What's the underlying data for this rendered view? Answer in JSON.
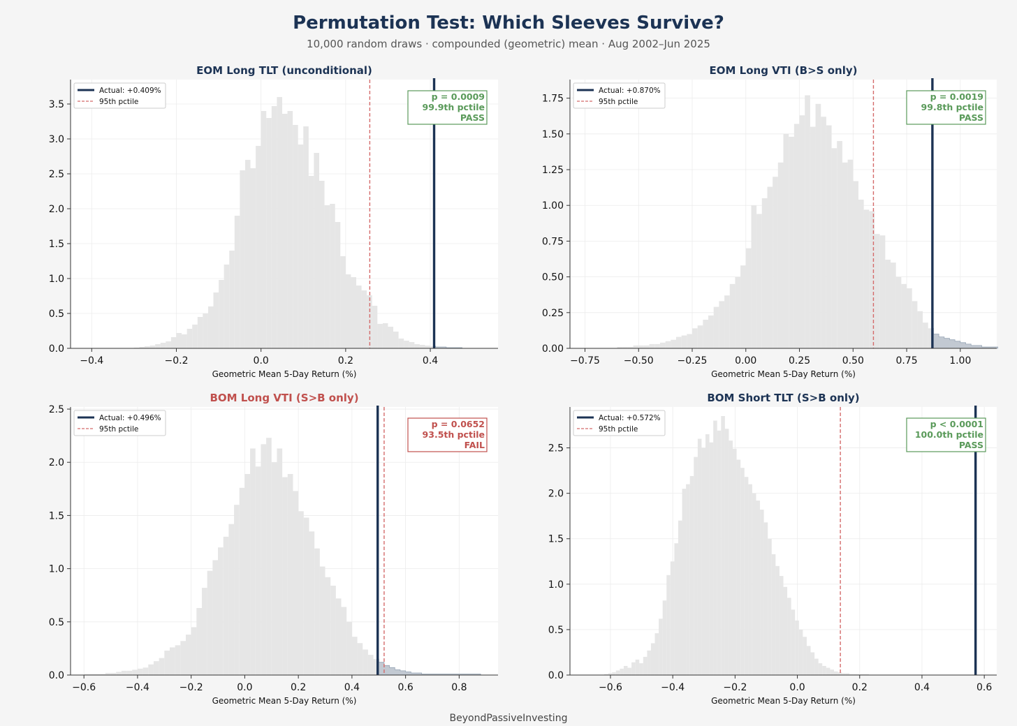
{
  "title": "Permutation Test: Which Sleeves Survive?",
  "subtitle": "10,000 random draws  ·  compounded (geometric) mean  ·  Aug 2002–Jun 2025",
  "footer": "BeyondPassiveInvesting",
  "colors": {
    "actual_line": "#1c3354",
    "pctile_line": "#d46a6a",
    "hist_fill": "#e6e6e6",
    "tail_fill": "#b9c2cd",
    "pass": "#5a9a5a",
    "fail": "#c0504d",
    "title_default": "#1c3354"
  },
  "chart_data": [
    {
      "type": "histogram",
      "title": "EOM Long TLT (unconditional)",
      "title_status": "pass",
      "xlabel": "Geometric Mean 5-Day Return (%)",
      "xlim": [
        -0.45,
        0.56
      ],
      "ylim": [
        0,
        3.85
      ],
      "xticks": [
        -0.4,
        -0.2,
        0.0,
        0.2,
        0.4
      ],
      "xtick_labels": [
        "−0.4",
        "−0.2",
        "0.0",
        "0.2",
        "0.4"
      ],
      "yticks": [
        0,
        0.5,
        1.0,
        1.5,
        2.0,
        2.5,
        3.0,
        3.5
      ],
      "ytick_labels": [
        "0.0",
        "0.5",
        "1.0",
        "1.5",
        "2.0",
        "2.5",
        "3.0",
        "3.5"
      ],
      "bins": {
        "start": -0.3,
        "width": 0.0125,
        "heights": [
          0.01,
          0.02,
          0.03,
          0.04,
          0.06,
          0.08,
          0.1,
          0.16,
          0.22,
          0.2,
          0.28,
          0.34,
          0.45,
          0.5,
          0.6,
          0.8,
          0.98,
          1.2,
          1.4,
          1.9,
          2.55,
          2.7,
          2.58,
          2.9,
          3.4,
          3.3,
          3.47,
          3.6,
          3.36,
          3.4,
          3.2,
          2.92,
          3.18,
          2.47,
          2.8,
          2.4,
          2.05,
          2.07,
          1.81,
          1.32,
          1.06,
          1.02,
          0.9,
          0.83,
          0.76,
          0.61,
          0.35,
          0.36,
          0.31,
          0.24,
          0.14,
          0.11,
          0.09,
          0.06,
          0.05,
          0.04,
          0.03,
          0.02,
          0.02,
          0.01,
          0.01,
          0.01
        ]
      },
      "tail_start": 0.409,
      "actual_value": 0.409,
      "pctile95_value": 0.257,
      "legend": {
        "actual_label": "Actual: +0.409%",
        "pctile_label": "95th pctile"
      },
      "stats": {
        "status": "pass",
        "p_text": "p = 0.0009",
        "pctile_text": "99.9th pctile",
        "result_text": "PASS"
      }
    },
    {
      "type": "histogram",
      "title": "EOM Long VTI (B>S only)",
      "title_status": "pass",
      "xlabel": "Geometric Mean 5-Day Return (%)",
      "xlim": [
        -0.82,
        1.17
      ],
      "ylim": [
        0,
        1.88
      ],
      "xticks": [
        -0.75,
        -0.5,
        -0.25,
        0.0,
        0.25,
        0.5,
        0.75,
        1.0
      ],
      "xtick_labels": [
        "−0.75",
        "−0.50",
        "−0.25",
        "0.00",
        "0.25",
        "0.50",
        "0.75",
        "1.00"
      ],
      "yticks": [
        0,
        0.25,
        0.5,
        0.75,
        1.0,
        1.25,
        1.5,
        1.75
      ],
      "ytick_labels": [
        "0.00",
        "0.25",
        "0.50",
        "0.75",
        "1.00",
        "1.25",
        "1.50",
        "1.75"
      ],
      "bins": {
        "start": -0.6,
        "width": 0.025,
        "heights": [
          0.01,
          0.01,
          0.01,
          0.02,
          0.02,
          0.02,
          0.03,
          0.03,
          0.04,
          0.05,
          0.06,
          0.08,
          0.09,
          0.1,
          0.14,
          0.16,
          0.2,
          0.23,
          0.29,
          0.33,
          0.37,
          0.45,
          0.5,
          0.58,
          0.7,
          1.0,
          0.94,
          1.05,
          1.13,
          1.2,
          1.3,
          1.5,
          1.48,
          1.57,
          1.63,
          1.77,
          1.55,
          1.71,
          1.62,
          1.56,
          1.4,
          1.45,
          1.3,
          1.32,
          1.17,
          1.04,
          0.97,
          0.96,
          0.8,
          0.79,
          0.62,
          0.6,
          0.5,
          0.45,
          0.42,
          0.33,
          0.26,
          0.18,
          0.14,
          0.1,
          0.08,
          0.07,
          0.06,
          0.05,
          0.04,
          0.03,
          0.02,
          0.02,
          0.01,
          0.01,
          0.01
        ]
      },
      "tail_start": 0.87,
      "actual_value": 0.87,
      "pctile95_value": 0.595,
      "legend": {
        "actual_label": "Actual: +0.870%",
        "pctile_label": "95th pctile"
      },
      "stats": {
        "status": "pass",
        "p_text": "p = 0.0019",
        "pctile_text": "99.8th pctile",
        "result_text": "PASS"
      }
    },
    {
      "type": "histogram",
      "title": "BOM Long VTI (S>B only)",
      "title_status": "fail",
      "xlabel": "Geometric Mean 5-Day Return (%)",
      "xlim": [
        -0.65,
        0.945
      ],
      "ylim": [
        0,
        2.52
      ],
      "xticks": [
        -0.6,
        -0.4,
        -0.2,
        0.0,
        0.2,
        0.4,
        0.6,
        0.8
      ],
      "xtick_labels": [
        "−0.6",
        "−0.4",
        "−0.2",
        "0.0",
        "0.2",
        "0.4",
        "0.6",
        "0.8"
      ],
      "yticks": [
        0,
        0.5,
        1.0,
        1.5,
        2.0,
        2.5
      ],
      "ytick_labels": [
        "0.0",
        "0.5",
        "1.0",
        "1.5",
        "2.0",
        "2.5"
      ],
      "bins": {
        "start": -0.6,
        "width": 0.02,
        "heights": [
          0.01,
          0.01,
          0.01,
          0.01,
          0.02,
          0.02,
          0.03,
          0.04,
          0.04,
          0.05,
          0.06,
          0.07,
          0.1,
          0.13,
          0.16,
          0.23,
          0.26,
          0.28,
          0.32,
          0.38,
          0.45,
          0.63,
          0.82,
          0.98,
          1.08,
          1.2,
          1.3,
          1.42,
          1.6,
          1.76,
          1.89,
          2.13,
          1.96,
          2.17,
          2.23,
          2.0,
          2.13,
          1.86,
          1.89,
          1.73,
          1.54,
          1.48,
          1.35,
          1.19,
          1.02,
          0.92,
          0.84,
          0.72,
          0.64,
          0.5,
          0.36,
          0.3,
          0.24,
          0.19,
          0.15,
          0.12,
          0.09,
          0.07,
          0.05,
          0.04,
          0.03,
          0.02,
          0.02,
          0.01,
          0.01,
          0.01,
          0.01,
          0.01,
          0.01,
          0.01,
          0.01,
          0.01,
          0.01,
          0.01
        ]
      },
      "tail_start": 0.496,
      "actual_value": 0.496,
      "pctile95_value": 0.52,
      "legend": {
        "actual_label": "Actual: +0.496%",
        "pctile_label": "95th pctile"
      },
      "stats": {
        "status": "fail",
        "p_text": "p = 0.0652",
        "pctile_text": "93.5th pctile",
        "result_text": "FAIL"
      }
    },
    {
      "type": "histogram",
      "title": "BOM Short TLT (S>B only)",
      "title_status": "pass",
      "xlabel": "Geometric Mean 5-Day Return (%)",
      "xlim": [
        -0.73,
        0.64
      ],
      "ylim": [
        0,
        2.95
      ],
      "xticks": [
        -0.6,
        -0.4,
        -0.2,
        0.0,
        0.2,
        0.4,
        0.6
      ],
      "xtick_labels": [
        "−0.6",
        "−0.4",
        "−0.2",
        "0.0",
        "0.2",
        "0.4",
        "0.6"
      ],
      "yticks": [
        0,
        0.5,
        1.0,
        1.5,
        2.0,
        2.5
      ],
      "ytick_labels": [
        "0.0",
        "0.5",
        "1.0",
        "1.5",
        "2.0",
        "2.5"
      ],
      "bins": {
        "start": -0.62,
        "width": 0.0125,
        "heights": [
          0.01,
          0.02,
          0.03,
          0.05,
          0.07,
          0.1,
          0.08,
          0.14,
          0.17,
          0.13,
          0.2,
          0.27,
          0.35,
          0.46,
          0.62,
          0.82,
          1.1,
          1.25,
          1.45,
          1.7,
          2.05,
          2.1,
          2.19,
          2.4,
          2.6,
          2.5,
          2.65,
          2.56,
          2.8,
          2.69,
          2.85,
          2.71,
          2.58,
          2.49,
          2.37,
          2.28,
          2.18,
          2.1,
          2.0,
          1.92,
          1.82,
          1.68,
          1.5,
          1.33,
          1.2,
          1.09,
          0.97,
          0.85,
          0.72,
          0.6,
          0.5,
          0.42,
          0.32,
          0.25,
          0.18,
          0.13,
          0.1,
          0.08,
          0.06,
          0.04,
          0.03,
          0.02,
          0.02,
          0.01,
          0.01,
          0.01,
          0.01,
          0.01
        ]
      },
      "tail_start": 0.572,
      "actual_value": 0.572,
      "pctile95_value": 0.138,
      "legend": {
        "actual_label": "Actual: +0.572%",
        "pctile_label": "95th pctile"
      },
      "stats": {
        "status": "pass",
        "p_text": "p < 0.0001",
        "pctile_text": "100.0th pctile",
        "result_text": "PASS"
      }
    }
  ]
}
